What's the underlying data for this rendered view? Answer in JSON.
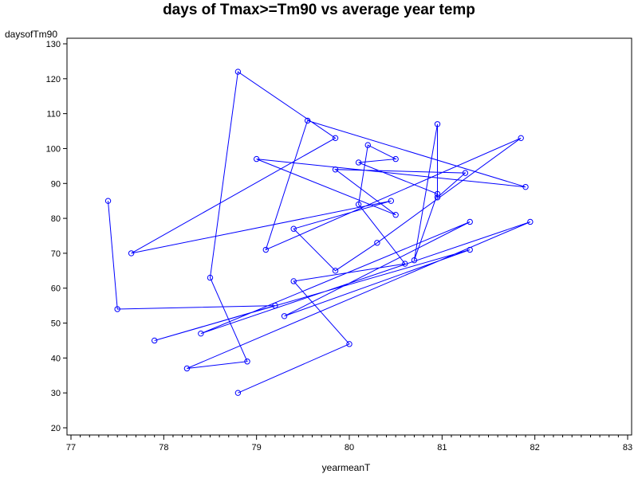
{
  "chart_data": {
    "type": "line",
    "title": "days of Tmax>=Tm90 vs average year temp",
    "xlabel": "yearmeanT",
    "ylabel": "daysofTm90",
    "xlim": [
      77,
      83
    ],
    "ylim": [
      20,
      130
    ],
    "xticks": [
      77,
      78,
      79,
      80,
      81,
      82,
      83
    ],
    "yticks": [
      20,
      30,
      40,
      50,
      60,
      70,
      80,
      90,
      100,
      110,
      120,
      130
    ],
    "grid": false,
    "markers": "open-circle",
    "series": [
      {
        "color": "#0000ff",
        "points": [
          [
            77.4,
            85
          ],
          [
            77.5,
            54
          ],
          [
            79.2,
            55
          ],
          [
            77.9,
            45
          ],
          [
            81.3,
            71
          ],
          [
            79.3,
            52
          ],
          [
            81.3,
            79
          ],
          [
            78.4,
            47
          ],
          [
            81.95,
            79
          ],
          [
            78.25,
            37
          ],
          [
            78.9,
            39
          ],
          [
            78.5,
            63
          ],
          [
            78.8,
            122
          ],
          [
            79.85,
            103
          ],
          [
            77.65,
            70
          ],
          [
            80.45,
            85
          ],
          [
            79.4,
            77
          ],
          [
            79.85,
            65
          ],
          [
            80.3,
            73
          ],
          [
            81.85,
            103
          ],
          [
            79.1,
            71
          ],
          [
            79.55,
            108
          ],
          [
            81.9,
            89
          ],
          [
            79.0,
            97
          ],
          [
            80.5,
            81
          ],
          [
            79.85,
            94
          ],
          [
            81.25,
            93
          ],
          [
            80.95,
            86
          ],
          [
            80.95,
            107
          ],
          [
            80.7,
            68
          ],
          [
            80.95,
            87
          ],
          [
            80.1,
            96
          ],
          [
            80.5,
            97
          ],
          [
            80.2,
            101
          ],
          [
            80.1,
            84
          ],
          [
            80.6,
            67
          ],
          [
            79.4,
            62
          ],
          [
            80.0,
            44
          ],
          [
            78.8,
            30
          ]
        ]
      }
    ]
  }
}
